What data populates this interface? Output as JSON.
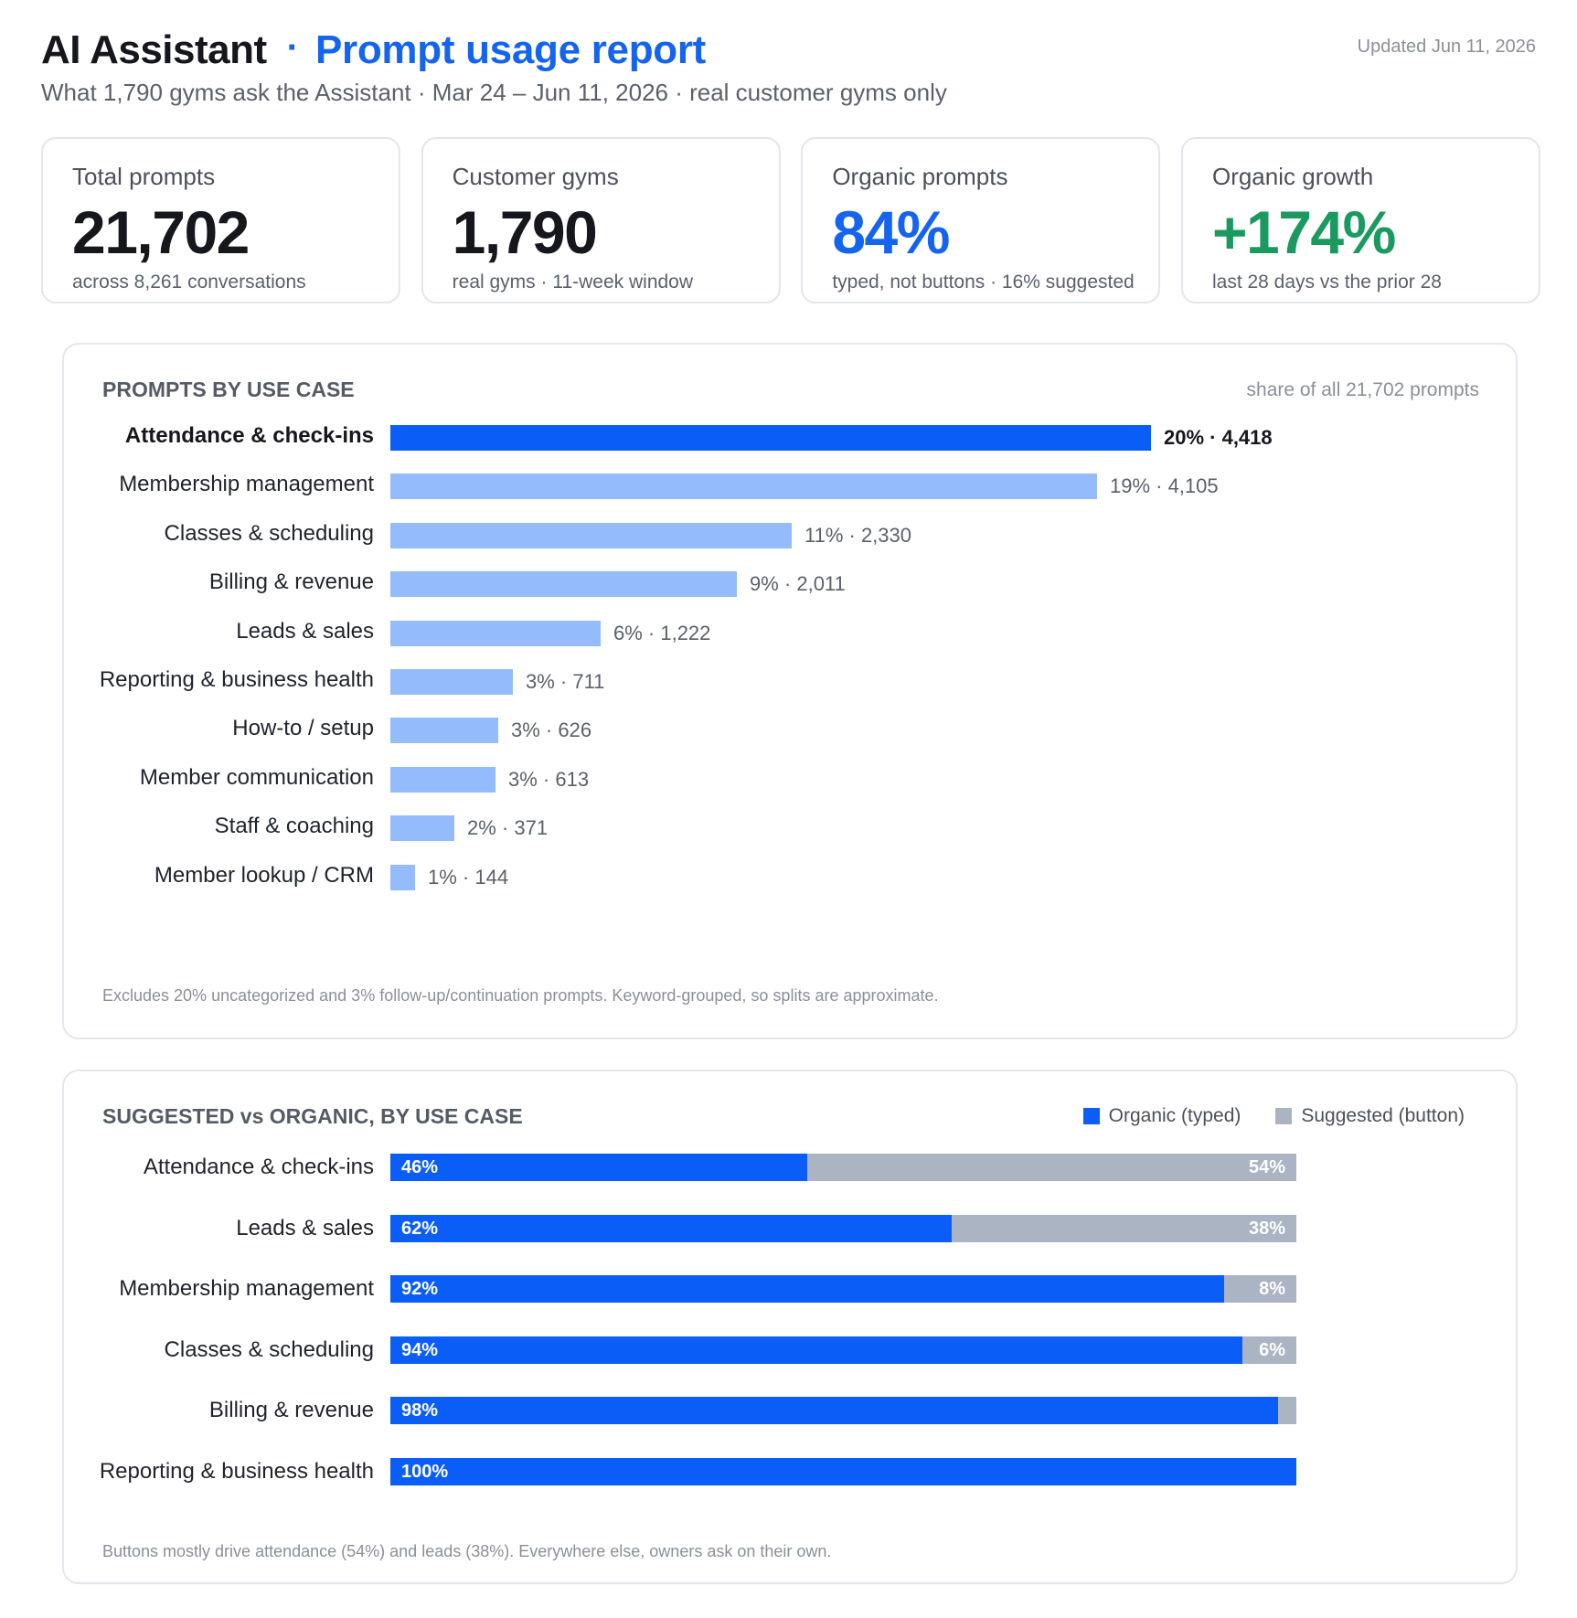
{
  "header": {
    "title": "AI Assistant",
    "separator": "·",
    "subtitle_title": "Prompt usage report",
    "updated": "Updated Jun 11, 2026",
    "description": "What 1,790 gyms ask the Assistant · Mar 24 – Jun 11, 2026 · real customer gyms only"
  },
  "kpis": [
    {
      "label": "Total prompts",
      "value": "21,702",
      "note": "across 8,261 conversations",
      "color": "#15171c"
    },
    {
      "label": "Customer gyms",
      "value": "1,790",
      "note": "real gyms · 11-week window",
      "color": "#15171c"
    },
    {
      "label": "Organic prompts",
      "value": "84%",
      "note": "typed, not buttons · 16% suggested",
      "color": "#1464f0"
    },
    {
      "label": "Organic growth",
      "value": "+174%",
      "note": "last 28 days vs the prior 28",
      "color": "#1b9a60"
    }
  ],
  "colors": {
    "primary": "#0a5ef7",
    "light_bar": "#94bbfb",
    "suggested": "#abb4c3",
    "accent_title": "#1464f0",
    "growth": "#1b9a60"
  },
  "use_case_panel": {
    "title": "PROMPTS BY USE CASE",
    "meta": "share of all 21,702 prompts",
    "footnote": "Excludes 20% uncategorized and 3% follow-up/continuation prompts. Keyword-grouped, so splits are approximate."
  },
  "split_panel": {
    "title": "SUGGESTED vs ORGANIC, BY USE CASE",
    "legend": [
      {
        "label": "Organic (typed)",
        "color": "#0a5ef7"
      },
      {
        "label": "Suggested (button)",
        "color": "#abb4c3"
      }
    ],
    "footnote": "Buttons mostly drive attendance (54%) and leads (38%). Everywhere else, owners ask on their own."
  },
  "chart_data": [
    {
      "type": "bar",
      "orientation": "horizontal",
      "title": "PROMPTS BY USE CASE",
      "categories": [
        "Attendance & check-ins",
        "Membership management",
        "Classes & scheduling",
        "Billing & revenue",
        "Leads & sales",
        "Reporting & business health",
        "How-to / setup",
        "Member communication",
        "Staff & coaching",
        "Member lookup / CRM"
      ],
      "series": [
        {
          "values": [
            4418,
            4105,
            2330,
            2011,
            1222,
            711,
            626,
            613,
            371,
            144
          ]
        }
      ],
      "percent_labels": [
        "20%",
        "19%",
        "11%",
        "9%",
        "6%",
        "3%",
        "3%",
        "3%",
        "2%",
        "1%"
      ],
      "count_labels": [
        "4,418",
        "4,105",
        "2,330",
        "2,011",
        "1,222",
        "711",
        "626",
        "613",
        "371",
        "144"
      ],
      "highlight_index": 0,
      "grid": false
    },
    {
      "type": "bar",
      "orientation": "horizontal",
      "stacked": true,
      "title": "SUGGESTED vs ORGANIC, BY USE CASE",
      "categories": [
        "Attendance & check-ins",
        "Leads & sales",
        "Membership management",
        "Classes & scheduling",
        "Billing & revenue",
        "Reporting & business health"
      ],
      "series": [
        {
          "name": "Organic (typed)",
          "values": [
            46,
            62,
            92,
            94,
            98,
            100
          ]
        },
        {
          "name": "Suggested (button)",
          "values": [
            54,
            38,
            8,
            6,
            2,
            0
          ]
        }
      ],
      "organic_labels": [
        "46%",
        "62%",
        "92%",
        "94%",
        "98%",
        "100%"
      ],
      "suggested_labels": [
        "54%",
        "38%",
        "8%",
        "6%",
        "",
        ""
      ],
      "xlim": [
        0,
        100
      ],
      "legend": "top-right",
      "grid": false
    }
  ]
}
